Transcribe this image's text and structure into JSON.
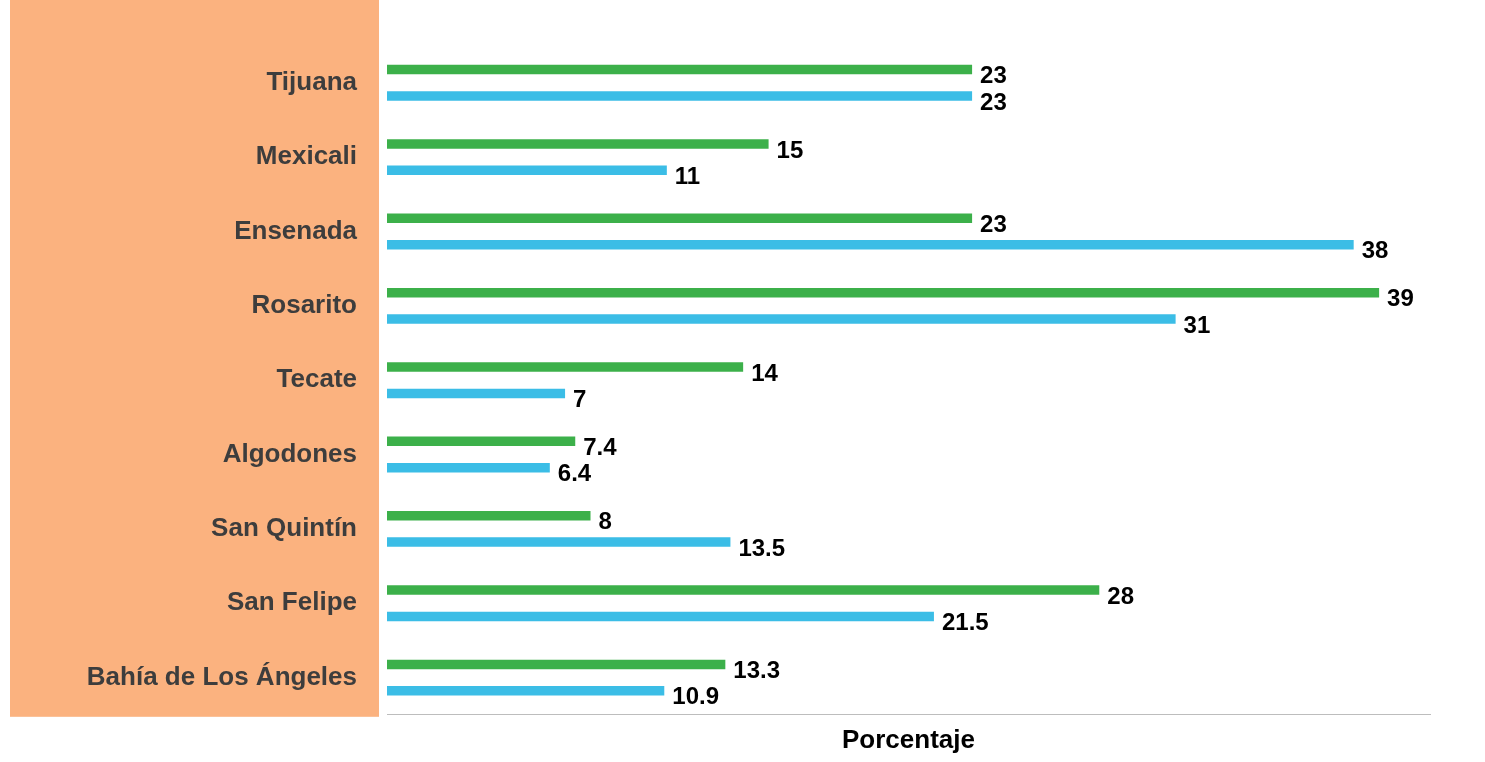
{
  "chart_data": {
    "type": "bar",
    "orientation": "horizontal",
    "categories": [
      "Tijuana",
      "Mexicali",
      "Ensenada",
      "Rosarito",
      "Tecate",
      "Algodones",
      "San Quintín",
      "San Felipe",
      "Bahía de Los Ángeles"
    ],
    "series": [
      {
        "color": "#3cb04a",
        "values": [
          23,
          15,
          23,
          39,
          14,
          7.4,
          8,
          28,
          13.3
        ]
      },
      {
        "color": "#3bbde6",
        "values": [
          23,
          11,
          38,
          31,
          7,
          6.4,
          13.5,
          21.5,
          10.9
        ]
      }
    ],
    "xlabel": "Porcentaje",
    "xlim": [
      0,
      41
    ],
    "xticks": [],
    "tick_labels": "y",
    "data_labels": true,
    "grid": false
  }
}
